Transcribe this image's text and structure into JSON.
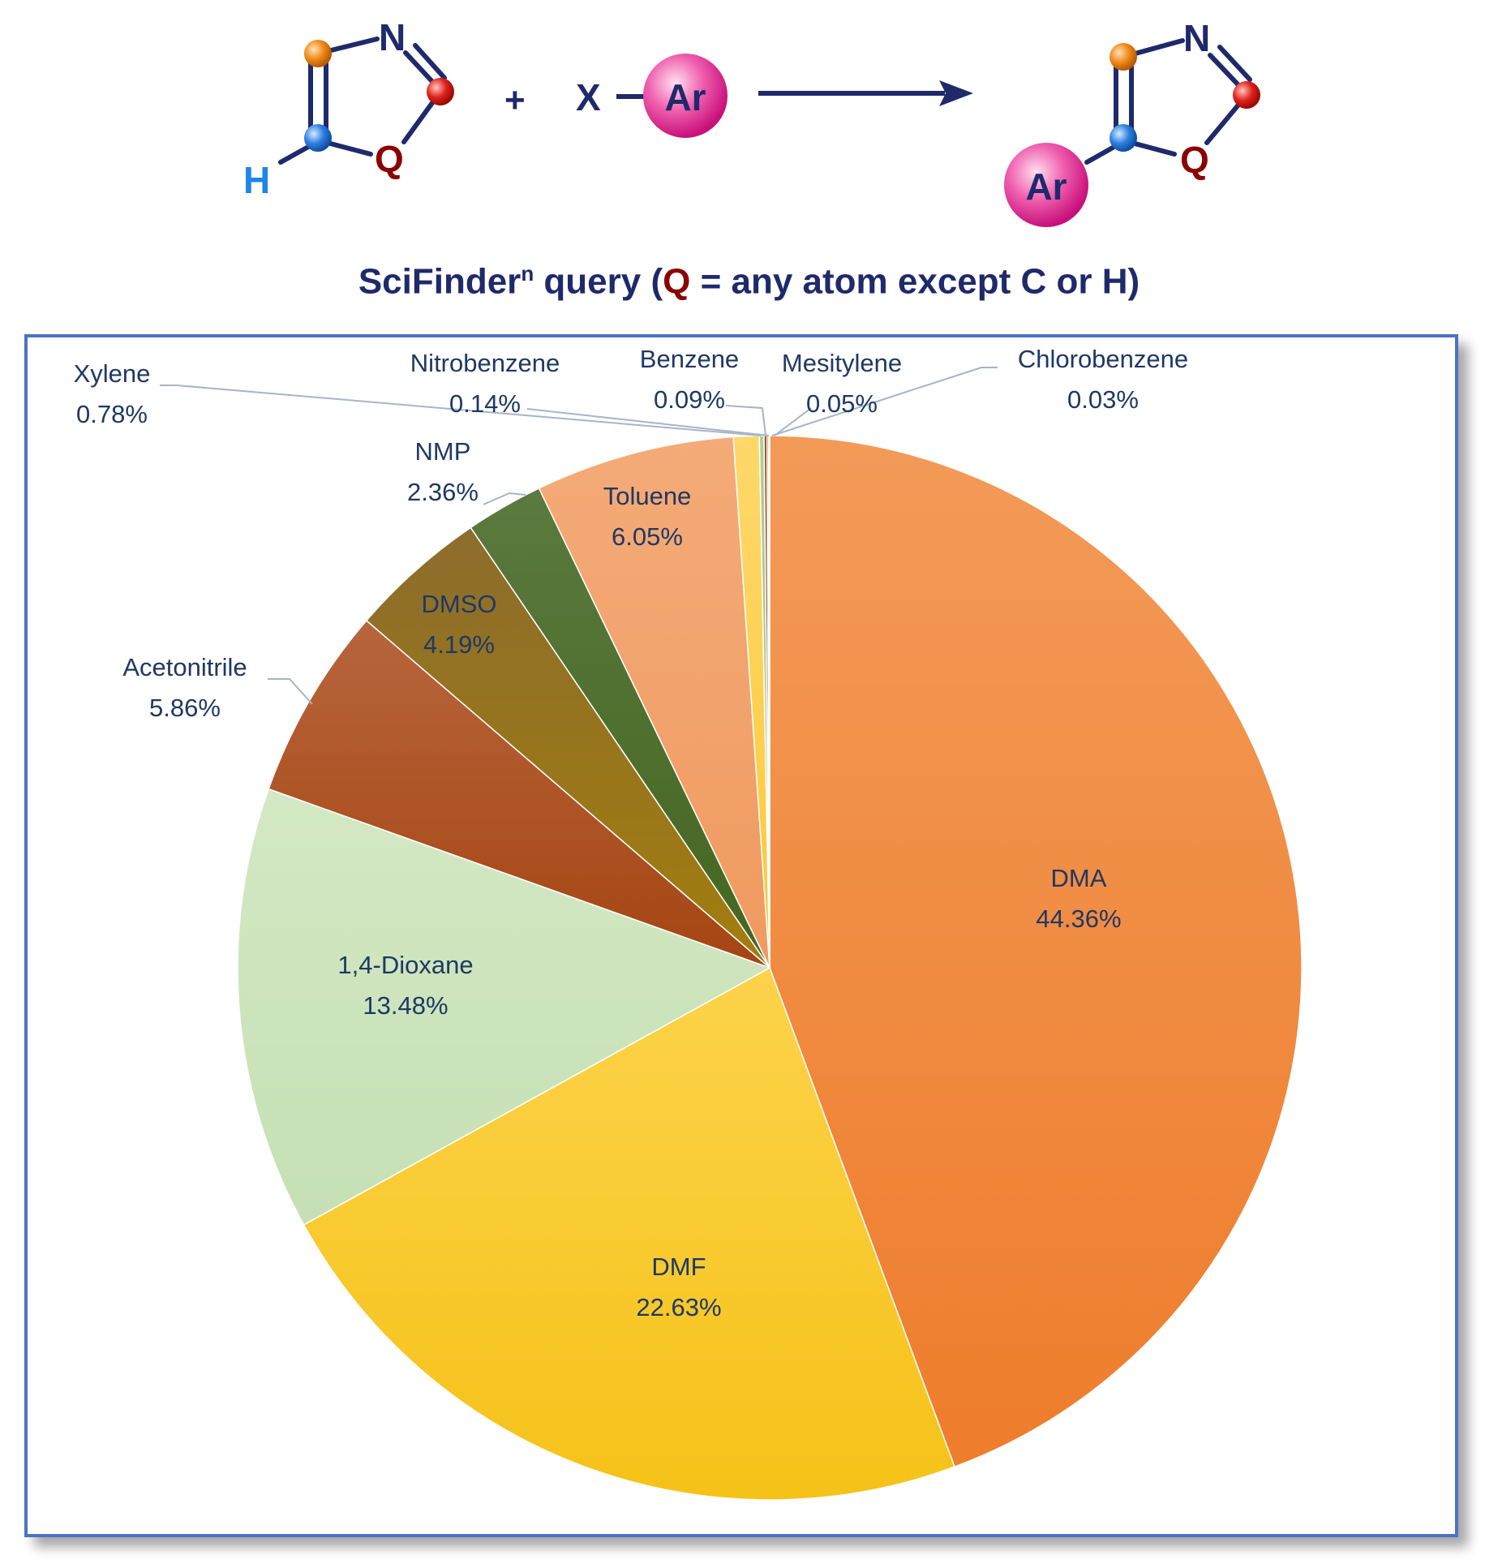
{
  "scheme": {
    "reactant_atoms": {
      "n": "N",
      "h": "H",
      "q": "Q"
    },
    "plus": "+",
    "reagent": {
      "x": "X",
      "ar": "Ar"
    },
    "product_atoms": {
      "n": "N",
      "q": "Q",
      "ar": "Ar"
    },
    "colors": {
      "bond": "#1f2a6b",
      "orange_atom": "#f08a1c",
      "red_atom": "#e0221c",
      "blue_atom": "#2f7fe0",
      "h_text": "#1e86e6",
      "q_text": "#8b0000",
      "ar_ball": "#e8309a"
    }
  },
  "title": {
    "pre": "SciFinder",
    "sup": "n",
    "mid": " query (",
    "q": "Q",
    "post": " = any atom except C or H)"
  },
  "chart_data": {
    "type": "pie",
    "title": "",
    "start_angle_deg": 0,
    "direction": "clockwise",
    "slices": [
      {
        "label": "DMA",
        "value": 44.36,
        "pct": "44.36%",
        "color": "#ee7d2c",
        "color_light": "#f39a58",
        "label_placement": "inside"
      },
      {
        "label": "DMF",
        "value": 22.63,
        "pct": "22.63%",
        "color": "#f5c218",
        "color_light": "#fdd34a",
        "label_placement": "inside"
      },
      {
        "label": "1,4-Dioxane",
        "value": 13.48,
        "pct": "13.48%",
        "color": "#c6e0b4",
        "color_light": "#d3e8c4",
        "label_placement": "inside"
      },
      {
        "label": "Acetonitrile",
        "value": 5.86,
        "pct": "5.86%",
        "color": "#a54512",
        "color_light": "#b8653d",
        "label_placement": "outside"
      },
      {
        "label": "DMSO",
        "value": 4.19,
        "pct": "4.19%",
        "color": "#a27d0e",
        "color_light": "#8c6d2c",
        "label_placement": "inside"
      },
      {
        "label": "NMP",
        "value": 2.36,
        "pct": "2.36%",
        "color": "#44661f",
        "color_light": "#5a7a3f",
        "label_placement": "outside"
      },
      {
        "label": "Toluene",
        "value": 6.05,
        "pct": "6.05%",
        "color": "#f09a60",
        "color_light": "#f4ab78",
        "label_placement": "inside"
      },
      {
        "label": "Xylene",
        "value": 0.78,
        "pct": "0.78%",
        "color": "#fcc93a",
        "color_light": "#fdd86a",
        "label_placement": "callout"
      },
      {
        "label": "Nitrobenzene",
        "value": 0.14,
        "pct": "0.14%",
        "color": "#9cbd7a",
        "color_light": "#b2cf95",
        "label_placement": "callout"
      },
      {
        "label": "Benzene",
        "value": 0.09,
        "pct": "0.09%",
        "color": "#8b3a10",
        "color_light": "#a0522d",
        "label_placement": "callout"
      },
      {
        "label": "Mesitylene",
        "value": 0.05,
        "pct": "0.05%",
        "color": "#7a6010",
        "color_light": "#8c7020",
        "label_placement": "callout"
      },
      {
        "label": "Chlorobenzene",
        "value": 0.03,
        "pct": "0.03%",
        "color": "#3d5a1a",
        "color_light": "#4a6a25",
        "label_placement": "callout"
      }
    ],
    "legend": "none",
    "leader_line_color": "#a6b4c8"
  }
}
